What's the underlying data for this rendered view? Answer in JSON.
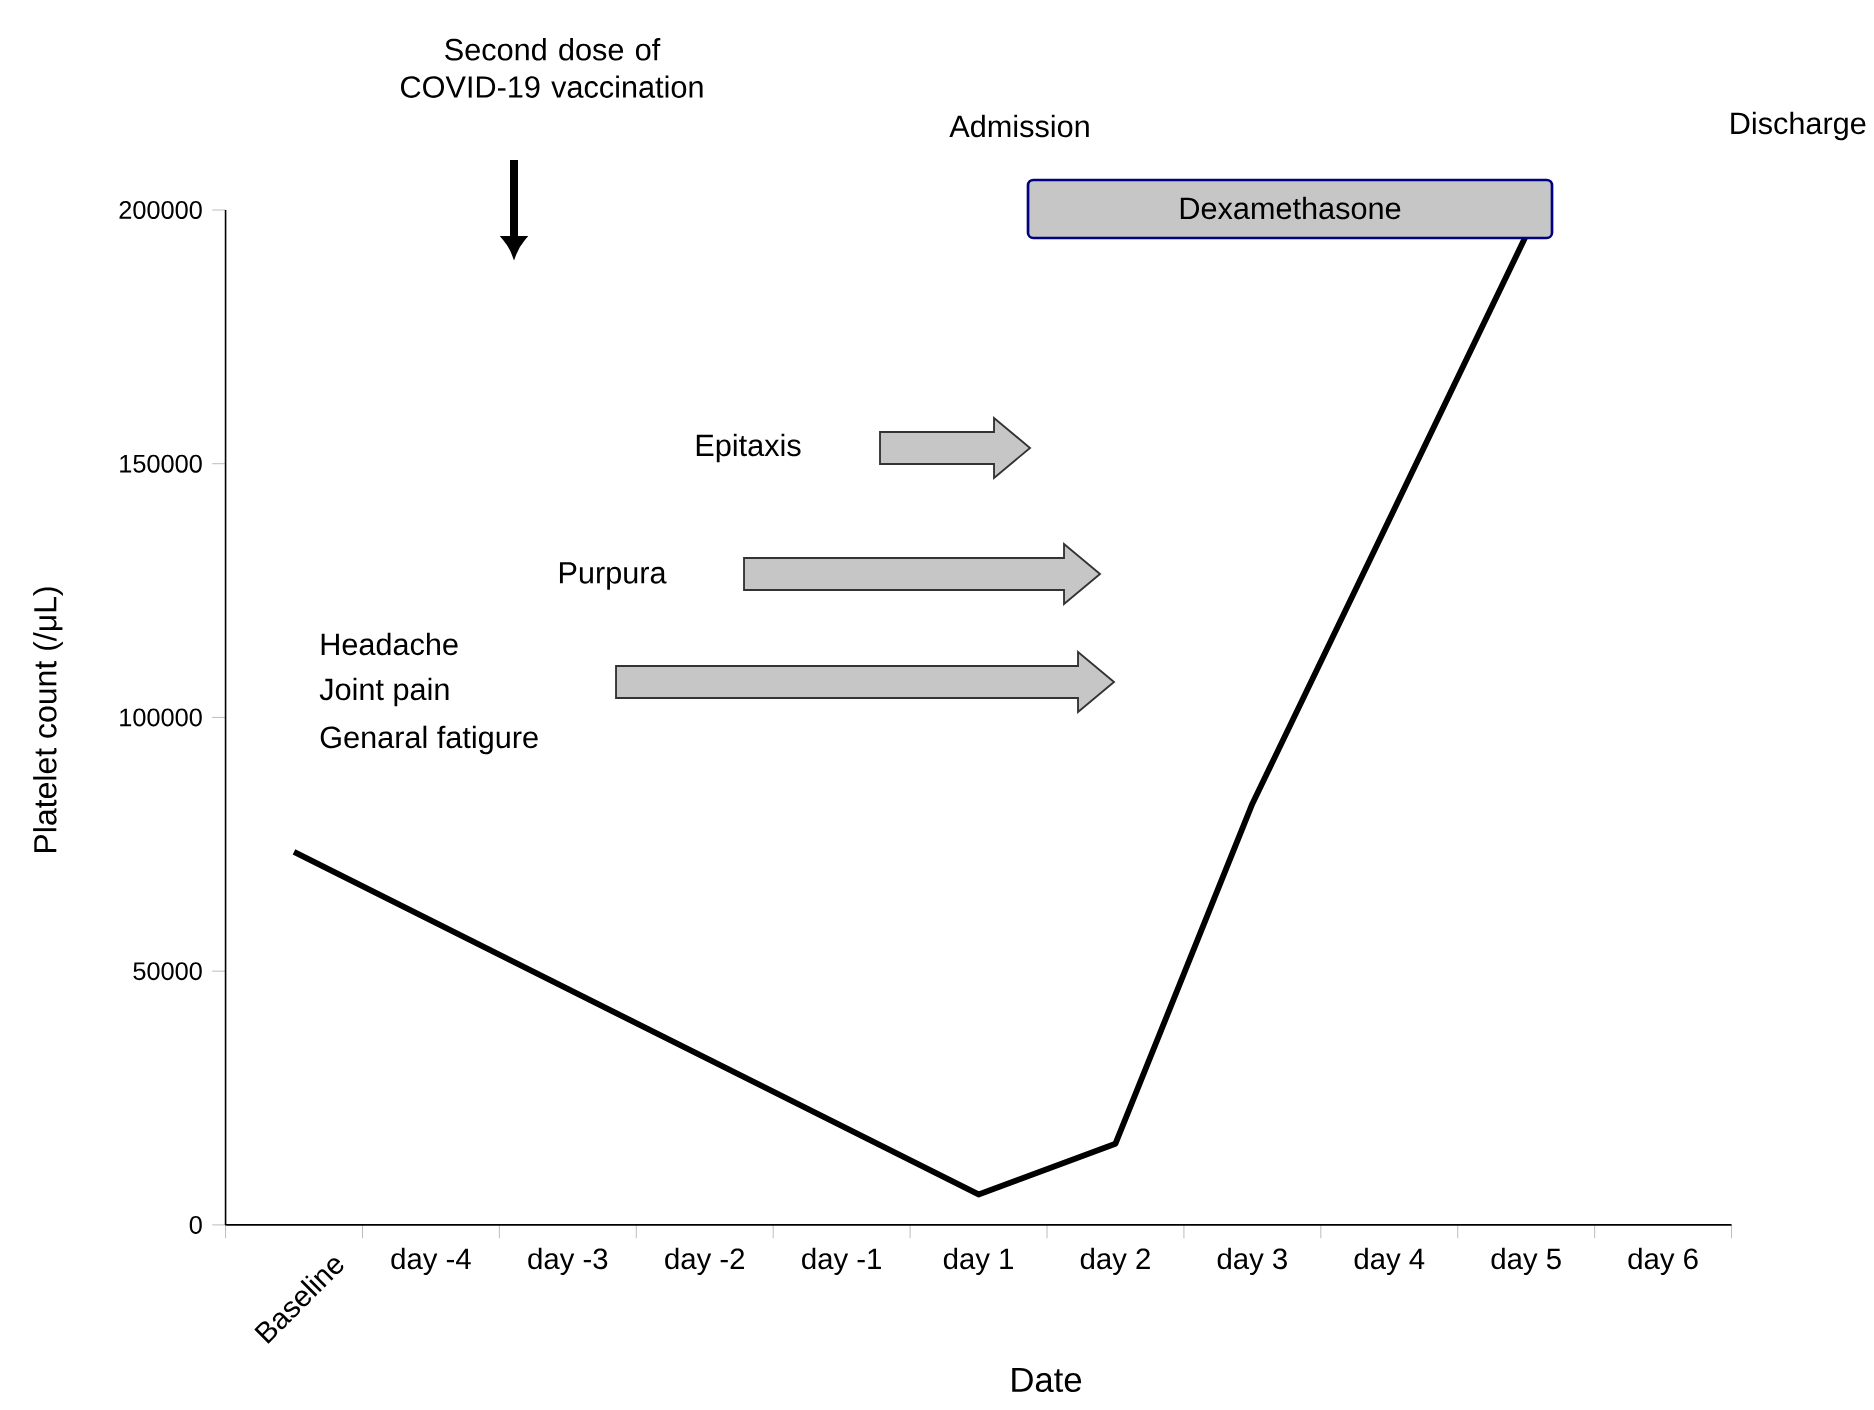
{
  "chart_data": {
    "type": "line",
    "xlabel": "Date",
    "ylabel": "Platelet count (/μL)",
    "categories": [
      "Baseline",
      "day -4",
      "day -3",
      "day -2",
      "day -1",
      "day 1",
      "day 2",
      "day 3",
      "day 4",
      "day 5",
      "day 6"
    ],
    "ylim": [
      0,
      200000
    ],
    "yticks": [
      0,
      50000,
      100000,
      150000,
      200000
    ],
    "marker": "none",
    "line_style": "solid",
    "series": [
      {
        "color": "#000000",
        "values": [
          73500,
          null,
          null,
          null,
          null,
          6000,
          16000,
          83000,
          null,
          195000,
          null
        ]
      }
    ],
    "annotations": [
      "Second dose of COVID-19 vaccination",
      "Admission",
      "Discharge",
      "Dexamethasone",
      "Epitaxis",
      "Purpura",
      "Headache",
      "Joint pain",
      "Genaral fatigure"
    ]
  }
}
